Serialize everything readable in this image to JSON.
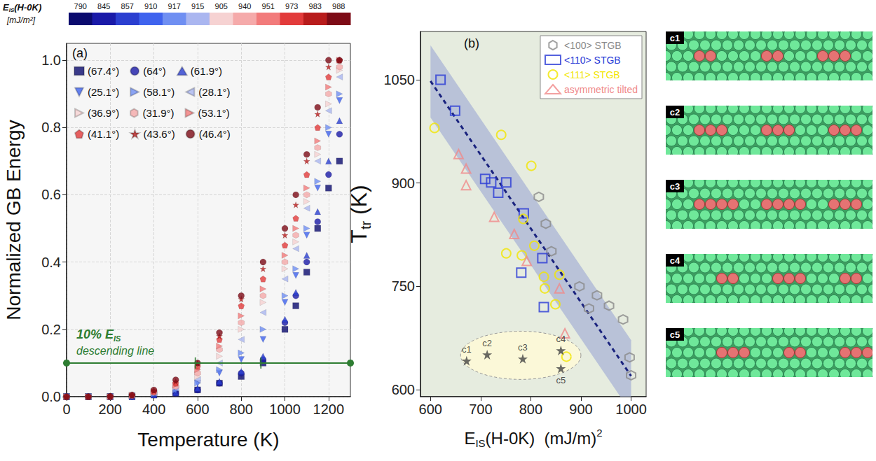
{
  "chart_data": [
    {
      "type": "scatter",
      "title": "(a)",
      "xlabel": [
        {
          "t": "Temperature (K)"
        }
      ],
      "ylabel": [
        {
          "t": "Normalized GB Energy"
        }
      ],
      "xlim": [
        0,
        1300
      ],
      "xticks": [
        0,
        200,
        400,
        600,
        800,
        1000,
        1200
      ],
      "ylim": [
        0,
        1.05
      ],
      "yticks": [
        {
          "value": 0,
          "label": "0.0"
        },
        {
          "value": 0.2,
          "label": "0.2"
        },
        {
          "value": 0.4,
          "label": "0.4"
        },
        {
          "value": 0.6,
          "label": "0.6"
        },
        {
          "value": 0.8,
          "label": "0.8"
        },
        {
          "value": 1,
          "label": "1.0"
        }
      ],
      "grid": true,
      "legend": "upper left",
      "colorbar": {
        "label": [
          {
            "t": "E"
          },
          {
            "t": "IS",
            "sub": true
          },
          {
            "t": "(H-0K)"
          }
        ],
        "unit": "[mJ/m²]",
        "values": [
          790,
          845,
          857,
          910,
          917,
          915,
          905,
          940,
          951,
          973,
          983,
          988
        ],
        "colors": [
          "#0b0b6e",
          "#1a1aa8",
          "#2b3fd0",
          "#3f63ee",
          "#6f8ff2",
          "#aab6f0",
          "#f6d2d2",
          "#f5aaaa",
          "#f27b7b",
          "#e23b3b",
          "#b81c1c",
          "#7d0b16"
        ]
      },
      "x": [
        0,
        100,
        200,
        300,
        400,
        500,
        600,
        700,
        800,
        900,
        1000,
        1050,
        1100,
        1150,
        1200,
        1250
      ],
      "series": [
        {
          "name": "(67.4°)",
          "color": "#0b0b6e",
          "marker": "square",
          "values": [
            0,
            0,
            0,
            0,
            0.005,
            0.01,
            0.02,
            0.04,
            0.06,
            0.1,
            0.2,
            0.27,
            0.37,
            0.5,
            0.62,
            0.7
          ]
        },
        {
          "name": "(64°)",
          "color": "#1a1aa8",
          "marker": "circle",
          "values": [
            0,
            0,
            0,
            0,
            0.005,
            0.01,
            0.02,
            0.04,
            0.07,
            0.11,
            0.22,
            0.3,
            0.4,
            0.52,
            0.66,
            0.78
          ]
        },
        {
          "name": "(61.9°)",
          "color": "#2b3fd0",
          "marker": "triangle",
          "values": [
            0,
            0,
            0,
            0,
            0.005,
            0.012,
            0.025,
            0.045,
            0.075,
            0.12,
            0.23,
            0.31,
            0.42,
            0.55,
            0.7,
            0.82
          ]
        },
        {
          "name": "(25.1°)",
          "color": "#3f63ee",
          "marker": "triangle-down",
          "values": [
            0,
            0,
            0,
            0.002,
            0.008,
            0.018,
            0.04,
            0.07,
            0.11,
            0.17,
            0.28,
            0.36,
            0.48,
            0.62,
            0.78,
            0.88
          ]
        },
        {
          "name": "(58.1°)",
          "color": "#6f8ff2",
          "marker": "triangle-right",
          "values": [
            0,
            0,
            0,
            0.002,
            0.008,
            0.02,
            0.04,
            0.08,
            0.13,
            0.2,
            0.3,
            0.38,
            0.5,
            0.64,
            0.8,
            0.9
          ]
        },
        {
          "name": "(28.1°)",
          "color": "#aab6f0",
          "marker": "triangle-left",
          "values": [
            0,
            0,
            0,
            0.003,
            0.01,
            0.025,
            0.05,
            0.1,
            0.17,
            0.25,
            0.35,
            0.44,
            0.56,
            0.7,
            0.85,
            0.95
          ]
        },
        {
          "name": "(36.9°)",
          "color": "#f6d2d2",
          "marker": "triangle-right",
          "values": [
            0,
            0,
            0,
            0.003,
            0.012,
            0.03,
            0.06,
            0.12,
            0.2,
            0.28,
            0.38,
            0.46,
            0.58,
            0.72,
            0.87,
            0.97
          ]
        },
        {
          "name": "(31.9°)",
          "color": "#f5aaaa",
          "marker": "hexagon",
          "values": [
            0,
            0,
            0,
            0.003,
            0.012,
            0.03,
            0.07,
            0.14,
            0.22,
            0.3,
            0.4,
            0.48,
            0.6,
            0.74,
            0.9,
            0.98
          ]
        },
        {
          "name": "(53.1°)",
          "color": "#f27b7b",
          "marker": "triangle-right",
          "values": [
            0,
            0,
            0,
            0.004,
            0.015,
            0.035,
            0.08,
            0.15,
            0.24,
            0.32,
            0.42,
            0.5,
            0.62,
            0.76,
            0.92,
            1.0
          ]
        },
        {
          "name": "(41.1°)",
          "color": "#e23b3b",
          "marker": "pentagon",
          "values": [
            0,
            0,
            0,
            0.004,
            0.015,
            0.04,
            0.09,
            0.17,
            0.27,
            0.35,
            0.45,
            0.53,
            0.66,
            0.8,
            0.95,
            1.0
          ]
        },
        {
          "name": "(43.6°)",
          "color": "#b81c1c",
          "marker": "star",
          "values": [
            0,
            0,
            0.001,
            0.005,
            0.018,
            0.045,
            0.1,
            0.18,
            0.29,
            0.38,
            0.48,
            0.57,
            0.7,
            0.84,
            0.98,
            1.0
          ]
        },
        {
          "name": "(46.4°)",
          "color": "#7d0b16",
          "marker": "circle",
          "values": [
            0,
            0,
            0.001,
            0.005,
            0.02,
            0.05,
            0.1,
            0.19,
            0.3,
            0.4,
            0.5,
            0.6,
            0.72,
            0.86,
            1.0,
            1.0
          ]
        }
      ],
      "reference_line": {
        "label": [
          {
            "t": "10% E"
          },
          {
            "t": "IS",
            "sub": true
          }
        ],
        "sublabel": "descending line",
        "y": 0.1,
        "x": [
          0,
          1300
        ],
        "marks": [
          590,
          890
        ],
        "color": "#2e7d32"
      }
    },
    {
      "type": "scatter",
      "title": "(b)",
      "xlabel": [
        {
          "t": "E"
        },
        {
          "t": "IS",
          "sub": true
        },
        {
          "t": "(H-0K)  (mJ/m)"
        },
        {
          "t": "2",
          "sup": true
        }
      ],
      "ylabel": [
        {
          "t": "T"
        },
        {
          "t": "tr",
          "sub": true
        },
        {
          "t": " (K)"
        }
      ],
      "xlim": [
        580,
        1030
      ],
      "xticks": [
        600,
        700,
        800,
        900,
        1000
      ],
      "ylim": [
        590,
        1120
      ],
      "yticks": [
        600,
        750,
        900,
        1050
      ],
      "grid": false,
      "legend": "upper right",
      "series": [
        {
          "name": "<100> STGB",
          "color": "#8a8a8a",
          "marker": "open-hexagon",
          "x": [
            816,
            830,
            841,
            897,
            916,
            932,
            956,
            984,
            997,
            1000
          ],
          "y": [
            880,
            841,
            801,
            750,
            718,
            737,
            722,
            702,
            647,
            621
          ]
        },
        {
          "name": "<110> STGB",
          "color": "#2a3bd6",
          "marker": "open-square",
          "x": [
            620,
            649,
            709,
            721,
            735,
            751,
            786,
            781,
            823,
            826
          ],
          "y": [
            1050,
            1005,
            906,
            901,
            886,
            901,
            856,
            770,
            791,
            720
          ]
        },
        {
          "name": "<111> STGB",
          "color": "#f2e600",
          "marker": "open-circle",
          "x": [
            608,
            741,
            801,
            785,
            782,
            751,
            807,
            826,
            828,
            857,
            849,
            871
          ],
          "y": [
            980,
            970,
            925,
            848,
            795,
            798,
            809,
            764,
            747,
            767,
            724,
            648
          ]
        },
        {
          "name": "asymmetric tilted",
          "color": "#f08a8a",
          "marker": "open-triangle",
          "x": [
            656,
            671,
            671,
            727,
            767,
            792,
            857,
            868
          ],
          "y": [
            942,
            921,
            897,
            851,
            826,
            787,
            747,
            682
          ]
        }
      ],
      "stars": {
        "marker": "star",
        "color": "#444444",
        "x": [
          672,
          713,
          784,
          860,
          860
        ],
        "y": [
          642,
          651,
          645,
          657,
          631
        ],
        "labels": [
          "c1",
          "c2",
          "c3",
          "c4",
          "c5"
        ]
      },
      "fit": {
        "x": [
          600,
          1000
        ],
        "y": [
          1048,
          620
        ],
        "color": "#1a237e",
        "line_style": "dashed"
      },
      "band": {
        "x": [
          600,
          1000
        ],
        "lower": [
          995,
          567
        ],
        "upper": [
          1100,
          672
        ],
        "color": "#aab4d6"
      },
      "ellipse": {
        "x": 780,
        "y": 650,
        "rx": 120,
        "ry": 35,
        "color": "#fbf8d8"
      }
    }
  ],
  "images": {
    "labels": [
      "c1",
      "c2",
      "c3",
      "c4",
      "c5"
    ]
  }
}
